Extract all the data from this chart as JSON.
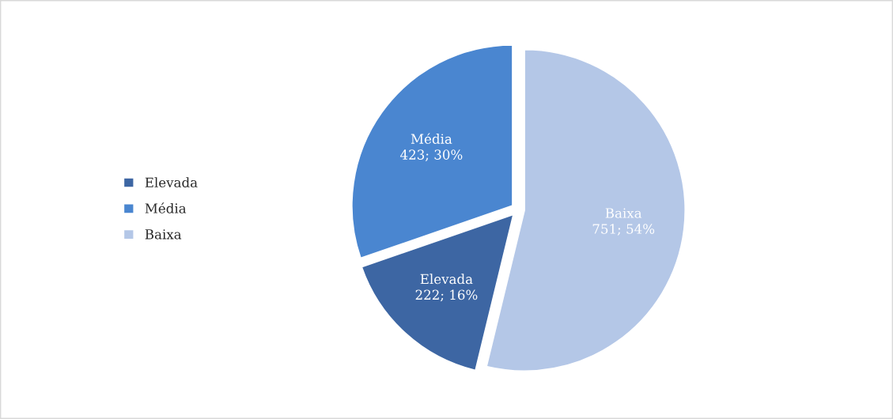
{
  "chart_data": {
    "type": "pie",
    "categories": [
      "Elevada",
      "Média",
      "Baixa"
    ],
    "values": [
      222,
      423,
      751
    ],
    "value_labels": [
      "222; 16%",
      "423; 30%",
      "751; 54%"
    ],
    "colors": [
      "#3d66a3",
      "#4a86d0",
      "#b4c7e7"
    ],
    "legend": "left"
  }
}
